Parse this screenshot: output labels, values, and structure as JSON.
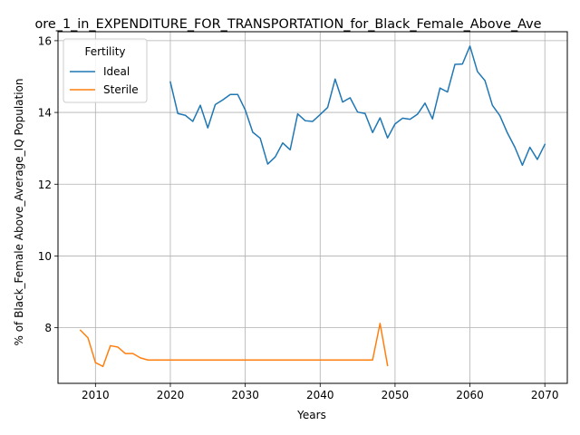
{
  "chart_data": {
    "type": "line",
    "title": "ore_1_in_EXPENDITURE_FOR_TRANSPORTATION_for_Black_Female_Above_Ave",
    "xlabel": "Years",
    "ylabel": "% of Black_Female Above_Average_IQ Population",
    "xlim": [
      2005,
      2073
    ],
    "ylim": [
      6.45,
      16.25
    ],
    "xticks": [
      2010,
      2020,
      2030,
      2040,
      2050,
      2060,
      2070
    ],
    "yticks": [
      8,
      10,
      12,
      14,
      16
    ],
    "grid": true,
    "legend": {
      "title": "Fertility",
      "placement": "upper-left"
    },
    "series": [
      {
        "name": "Ideal",
        "color": "#1f77b4",
        "x": [
          2020,
          2021,
          2022,
          2023,
          2024,
          2025,
          2026,
          2027,
          2028,
          2029,
          2030,
          2031,
          2032,
          2033,
          2034,
          2035,
          2036,
          2037,
          2038,
          2039,
          2040,
          2041,
          2042,
          2043,
          2044,
          2045,
          2046,
          2047,
          2048,
          2049,
          2050,
          2051,
          2052,
          2053,
          2054,
          2055,
          2056,
          2057,
          2058,
          2059,
          2060,
          2061,
          2062,
          2063,
          2064,
          2065,
          2066,
          2067,
          2068,
          2069,
          2070
        ],
        "y": [
          14.85,
          13.97,
          13.92,
          13.75,
          14.2,
          13.57,
          14.22,
          14.35,
          14.5,
          14.5,
          14.07,
          13.45,
          13.28,
          12.56,
          12.76,
          13.15,
          12.96,
          13.96,
          13.77,
          13.75,
          13.94,
          14.14,
          14.93,
          14.29,
          14.41,
          14.01,
          13.97,
          13.44,
          13.85,
          13.29,
          13.68,
          13.84,
          13.81,
          13.95,
          14.26,
          13.82,
          14.68,
          14.57,
          15.34,
          15.35,
          15.85,
          15.14,
          14.89,
          14.2,
          13.91,
          13.43,
          13.03,
          12.53,
          13.03,
          12.69,
          13.11
        ]
      },
      {
        "name": "Sterile",
        "color": "#ff7f0e",
        "x": [
          2008,
          2009,
          2010,
          2011,
          2012,
          2013,
          2014,
          2015,
          2016,
          2017,
          2018,
          2019,
          2020,
          2021,
          2022,
          2023,
          2024,
          2025,
          2026,
          2027,
          2028,
          2029,
          2030,
          2031,
          2032,
          2033,
          2034,
          2035,
          2036,
          2037,
          2038,
          2039,
          2040,
          2041,
          2042,
          2043,
          2044,
          2045,
          2046,
          2047,
          2048,
          2049
        ],
        "y": [
          7.93,
          7.72,
          7.03,
          6.92,
          7.5,
          7.46,
          7.28,
          7.28,
          7.16,
          7.1,
          7.1,
          7.1,
          7.1,
          7.1,
          7.1,
          7.1,
          7.1,
          7.1,
          7.1,
          7.1,
          7.1,
          7.1,
          7.1,
          7.1,
          7.1,
          7.1,
          7.1,
          7.1,
          7.1,
          7.1,
          7.1,
          7.1,
          7.1,
          7.1,
          7.1,
          7.1,
          7.1,
          7.1,
          7.1,
          7.1,
          8.12,
          6.95
        ]
      }
    ]
  }
}
